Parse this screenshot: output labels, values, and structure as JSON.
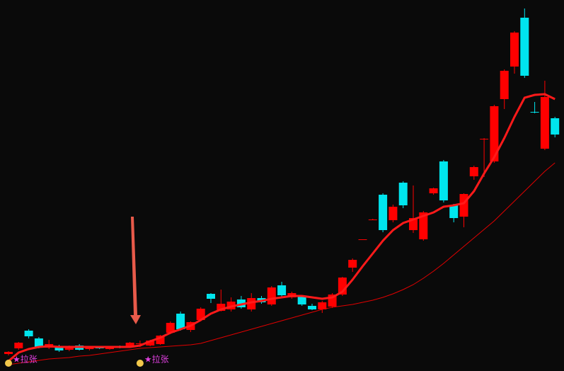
{
  "chart_data": {
    "type": "candlestick",
    "categories": [
      null,
      null,
      null,
      null,
      null,
      null,
      null,
      null,
      null,
      null,
      null,
      null,
      null,
      null,
      null,
      null,
      null,
      null,
      null,
      null,
      null,
      null,
      null,
      null,
      null,
      null,
      null,
      null,
      null,
      null,
      null,
      null,
      null,
      null,
      null,
      null,
      null,
      null,
      null,
      null,
      null,
      null,
      null,
      null,
      null,
      null,
      null,
      null,
      null,
      null,
      null,
      null,
      null,
      null,
      null
    ],
    "open": [
      24,
      32,
      57,
      46,
      33,
      35,
      30,
      36,
      31,
      34,
      31,
      35,
      34,
      38,
      36,
      38,
      54,
      81,
      58,
      72,
      109,
      85,
      87,
      101,
      87,
      103,
      94,
      121,
      104,
      105,
      92,
      87,
      91,
      108,
      146,
      185,
      213,
      249,
      213,
      266,
      199,
      186,
      251,
      296,
      234,
      218,
      275,
      327,
      296,
      384,
      430,
      499,
      366,
      314,
      357
    ],
    "high": [
      28,
      41,
      59,
      48,
      44,
      37,
      36,
      38,
      35,
      35,
      35,
      36,
      41,
      43,
      44,
      51,
      70,
      84,
      70,
      90,
      110,
      115,
      104,
      106,
      110,
      106,
      120,
      126,
      112,
      107,
      95,
      99,
      110,
      133,
      159,
      186,
      215,
      251,
      235,
      268,
      262,
      226,
      259,
      298,
      236,
      251,
      290,
      329,
      376,
      426,
      480,
      512,
      380,
      410,
      359
    ],
    "low": [
      22,
      30,
      46,
      32,
      31,
      27,
      28,
      29,
      29,
      31,
      30,
      32,
      33,
      34,
      35,
      37,
      52,
      57,
      55,
      70,
      96,
      84,
      84,
      88,
      84,
      95,
      92,
      105,
      102,
      92,
      86,
      82,
      89,
      106,
      140,
      185,
      213,
      196,
      210,
      230,
      195,
      184,
      249,
      238,
      210,
      203,
      270,
      274,
      294,
      370,
      420,
      414,
      364,
      312,
      330
    ],
    "close": [
      27,
      40,
      49,
      34,
      38,
      29,
      34,
      30,
      34,
      32,
      34,
      33,
      40,
      39,
      43,
      50,
      68,
      59,
      69,
      88,
      102,
      95,
      98,
      90,
      103,
      97,
      118,
      107,
      110,
      94,
      87,
      97,
      108,
      132,
      157,
      186,
      214,
      199,
      232,
      234,
      216,
      224,
      258,
      241,
      216,
      250,
      288,
      328,
      374,
      424,
      478,
      417,
      365,
      387,
      334
    ],
    "up_color": "#ff0000",
    "down_color": "#00e5ee",
    "lines": [
      {
        "color": "#ff1a1a",
        "width": 3,
        "values": [
          14,
          26,
          31,
          34,
          35,
          34,
          34,
          34,
          34,
          34,
          34,
          34,
          34,
          36,
          42,
          47,
          54,
          59,
          64,
          72,
          81,
          87,
          91,
          94,
          97,
          99,
          102,
          104,
          106,
          106,
          104,
          102,
          104,
          112,
          129,
          148,
          166,
          184,
          199,
          209,
          214,
          219,
          224,
          232,
          234,
          237,
          254,
          279,
          302,
          329,
          359,
          386,
          390,
          391,
          384
        ]
      },
      {
        "color": "#e00000",
        "width": 1,
        "values": [
          9,
          11,
          13,
          15,
          17,
          18,
          19,
          21,
          22,
          24,
          26,
          28,
          30,
          32,
          33,
          34,
          35,
          36,
          37,
          39,
          43,
          47,
          51,
          55,
          59,
          63,
          67,
          71,
          75,
          79,
          83,
          87,
          90,
          92,
          94,
          97,
          100,
          104,
          109,
          115,
          122,
          131,
          141,
          152,
          164,
          176,
          188,
          200,
          212,
          226,
          240,
          254,
          268,
          282,
          294
        ]
      }
    ],
    "ylim": [
      0,
      524
    ],
    "annotations": [
      {
        "text": "★拉张",
        "x": 0
      },
      {
        "text": "★拉张",
        "x": 13
      }
    ]
  }
}
